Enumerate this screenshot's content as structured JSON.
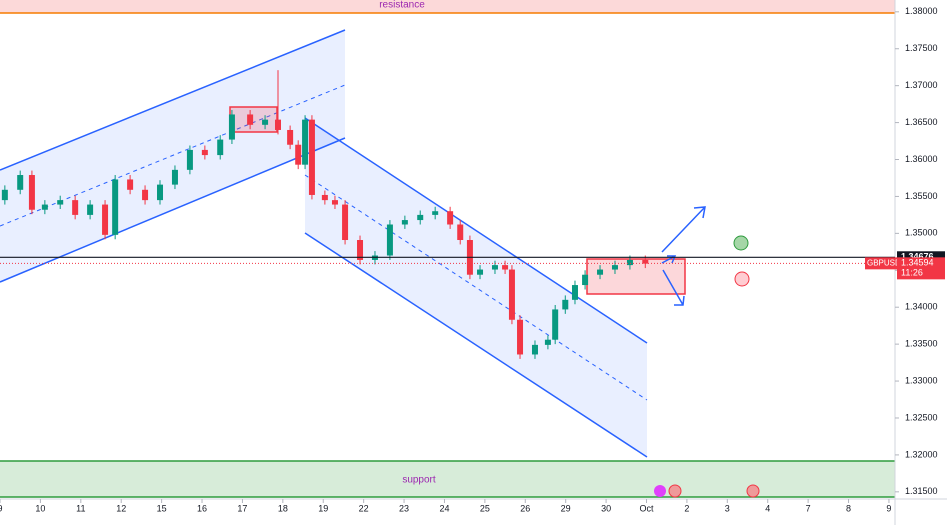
{
  "chart_data": {
    "type": "candlestick",
    "up_color": "#089981",
    "down_color": "#f23645",
    "x": [
      0.12,
      0.5,
      0.79,
      1.11,
      1.49,
      1.86,
      2.23,
      2.6,
      2.85,
      3.22,
      3.59,
      3.96,
      4.33,
      4.7,
      5.07,
      5.45,
      5.74,
      6.19,
      6.56,
      6.88,
      7.18,
      7.38,
      7.55,
      7.72,
      8.04,
      8.29,
      8.54,
      8.91,
      9.28,
      9.65,
      10.02,
      10.4,
      10.77,
      11.14,
      11.39,
      11.63,
      11.88,
      12.25,
      12.5,
      12.67,
      12.87,
      13.24,
      13.56,
      13.74,
      13.99,
      14.23,
      14.48,
      14.85,
      15.22,
      15.59,
      15.97
    ],
    "open": [
      1.3545,
      1.3559,
      1.3579,
      1.3532,
      1.3539,
      1.3545,
      1.3525,
      1.3539,
      1.3498,
      1.3573,
      1.3559,
      1.3545,
      1.3566,
      1.3586,
      1.3613,
      1.3606,
      1.3627,
      1.3661,
      1.3647,
      1.3654,
      1.364,
      1.362,
      1.3593,
      1.3654,
      1.3552,
      1.3545,
      1.3539,
      1.3491,
      1.3464,
      1.347,
      1.3512,
      1.3518,
      1.3525,
      1.353,
      1.3512,
      1.3491,
      1.3444,
      1.3451,
      1.3457,
      1.3451,
      1.3383,
      1.3336,
      1.3349,
      1.3356,
      1.3397,
      1.341,
      1.343,
      1.3444,
      1.3451,
      1.3457,
      1.3464
    ],
    "high": [
      1.3565,
      1.3585,
      1.3585,
      1.3545,
      1.3551,
      1.3551,
      1.3545,
      1.3545,
      1.3579,
      1.3579,
      1.3565,
      1.3572,
      1.3592,
      1.3619,
      1.3619,
      1.3633,
      1.3667,
      1.3667,
      1.366,
      1.3721,
      1.3646,
      1.3626,
      1.366,
      1.366,
      1.3558,
      1.3551,
      1.3545,
      1.3497,
      1.3476,
      1.3518,
      1.3524,
      1.3531,
      1.3536,
      1.3536,
      1.3518,
      1.3497,
      1.3457,
      1.3463,
      1.3463,
      1.3457,
      1.3389,
      1.3355,
      1.3362,
      1.3403,
      1.3416,
      1.3436,
      1.345,
      1.3457,
      1.3463,
      1.347,
      1.347
    ],
    "low": [
      1.3539,
      1.3553,
      1.3526,
      1.3526,
      1.3533,
      1.3519,
      1.3519,
      1.3492,
      1.3492,
      1.3553,
      1.3539,
      1.3539,
      1.356,
      1.358,
      1.36,
      1.36,
      1.3621,
      1.3641,
      1.3641,
      1.3634,
      1.3614,
      1.3587,
      1.3587,
      1.3546,
      1.3539,
      1.3533,
      1.3485,
      1.3458,
      1.3458,
      1.3464,
      1.3506,
      1.3512,
      1.3519,
      1.3506,
      1.3485,
      1.3438,
      1.3438,
      1.3445,
      1.3445,
      1.3377,
      1.333,
      1.333,
      1.3343,
      1.335,
      1.3391,
      1.3404,
      1.3424,
      1.3438,
      1.3445,
      1.3451,
      1.3453
    ],
    "close": [
      1.3559,
      1.3579,
      1.3532,
      1.3539,
      1.3545,
      1.3525,
      1.3539,
      1.3498,
      1.3573,
      1.3559,
      1.3545,
      1.3566,
      1.3586,
      1.3613,
      1.3606,
      1.3627,
      1.3661,
      1.3647,
      1.3654,
      1.364,
      1.362,
      1.3593,
      1.3654,
      1.3552,
      1.3545,
      1.3539,
      1.3491,
      1.3464,
      1.347,
      1.3512,
      1.3518,
      1.3525,
      1.353,
      1.3512,
      1.3491,
      1.3444,
      1.3451,
      1.3457,
      1.3451,
      1.3383,
      1.3336,
      1.3349,
      1.3356,
      1.3397,
      1.341,
      1.343,
      1.3444,
      1.3451,
      1.3457,
      1.3464,
      1.3459
    ],
    "xlim": [
      0,
      22.15
    ],
    "xticks": [
      {
        "value": 0,
        "label": "9"
      },
      {
        "value": 1,
        "label": "10"
      },
      {
        "value": 2,
        "label": "11"
      },
      {
        "value": 3,
        "label": "12"
      },
      {
        "value": 4,
        "label": "15"
      },
      {
        "value": 5,
        "label": "16"
      },
      {
        "value": 6,
        "label": "17"
      },
      {
        "value": 7,
        "label": "18"
      },
      {
        "value": 8,
        "label": "19"
      },
      {
        "value": 9,
        "label": "22"
      },
      {
        "value": 10,
        "label": "23"
      },
      {
        "value": 11,
        "label": "24"
      },
      {
        "value": 12,
        "label": "25"
      },
      {
        "value": 13,
        "label": "26"
      },
      {
        "value": 14,
        "label": "29"
      },
      {
        "value": 15,
        "label": "30"
      },
      {
        "value": 16,
        "label": "Oct"
      },
      {
        "value": 17,
        "label": "2"
      },
      {
        "value": 18,
        "label": "3"
      },
      {
        "value": 19,
        "label": "4"
      },
      {
        "value": 20,
        "label": "7"
      },
      {
        "value": 21,
        "label": "8"
      },
      {
        "value": 22,
        "label": "9"
      }
    ],
    "ylim": [
      1.3143,
      1.3816
    ],
    "yticks": [
      {
        "value": 1.38,
        "label": "1.38000"
      },
      {
        "value": 1.375,
        "label": "1.37500"
      },
      {
        "value": 1.37,
        "label": "1.37000"
      },
      {
        "value": 1.365,
        "label": "1.36500"
      },
      {
        "value": 1.36,
        "label": "1.36000"
      },
      {
        "value": 1.355,
        "label": "1.35500"
      },
      {
        "value": 1.35,
        "label": "1.35000"
      },
      {
        "value": 1.345,
        "label": "1.34500"
      },
      {
        "value": 1.34,
        "label": "1.34000"
      },
      {
        "value": 1.335,
        "label": "1.33500"
      },
      {
        "value": 1.33,
        "label": "1.33000"
      },
      {
        "value": 1.325,
        "label": "1.32500"
      },
      {
        "value": 1.32,
        "label": "1.32000"
      },
      {
        "value": 1.315,
        "label": "1.31500"
      }
    ],
    "price_line": {
      "value": 1.34676,
      "label": "1.34676"
    },
    "current": {
      "symbol": "GBPUSD",
      "price": 1.34594,
      "countdown": "11:26"
    },
    "annotations": [
      "resistance",
      "support"
    ]
  }
}
